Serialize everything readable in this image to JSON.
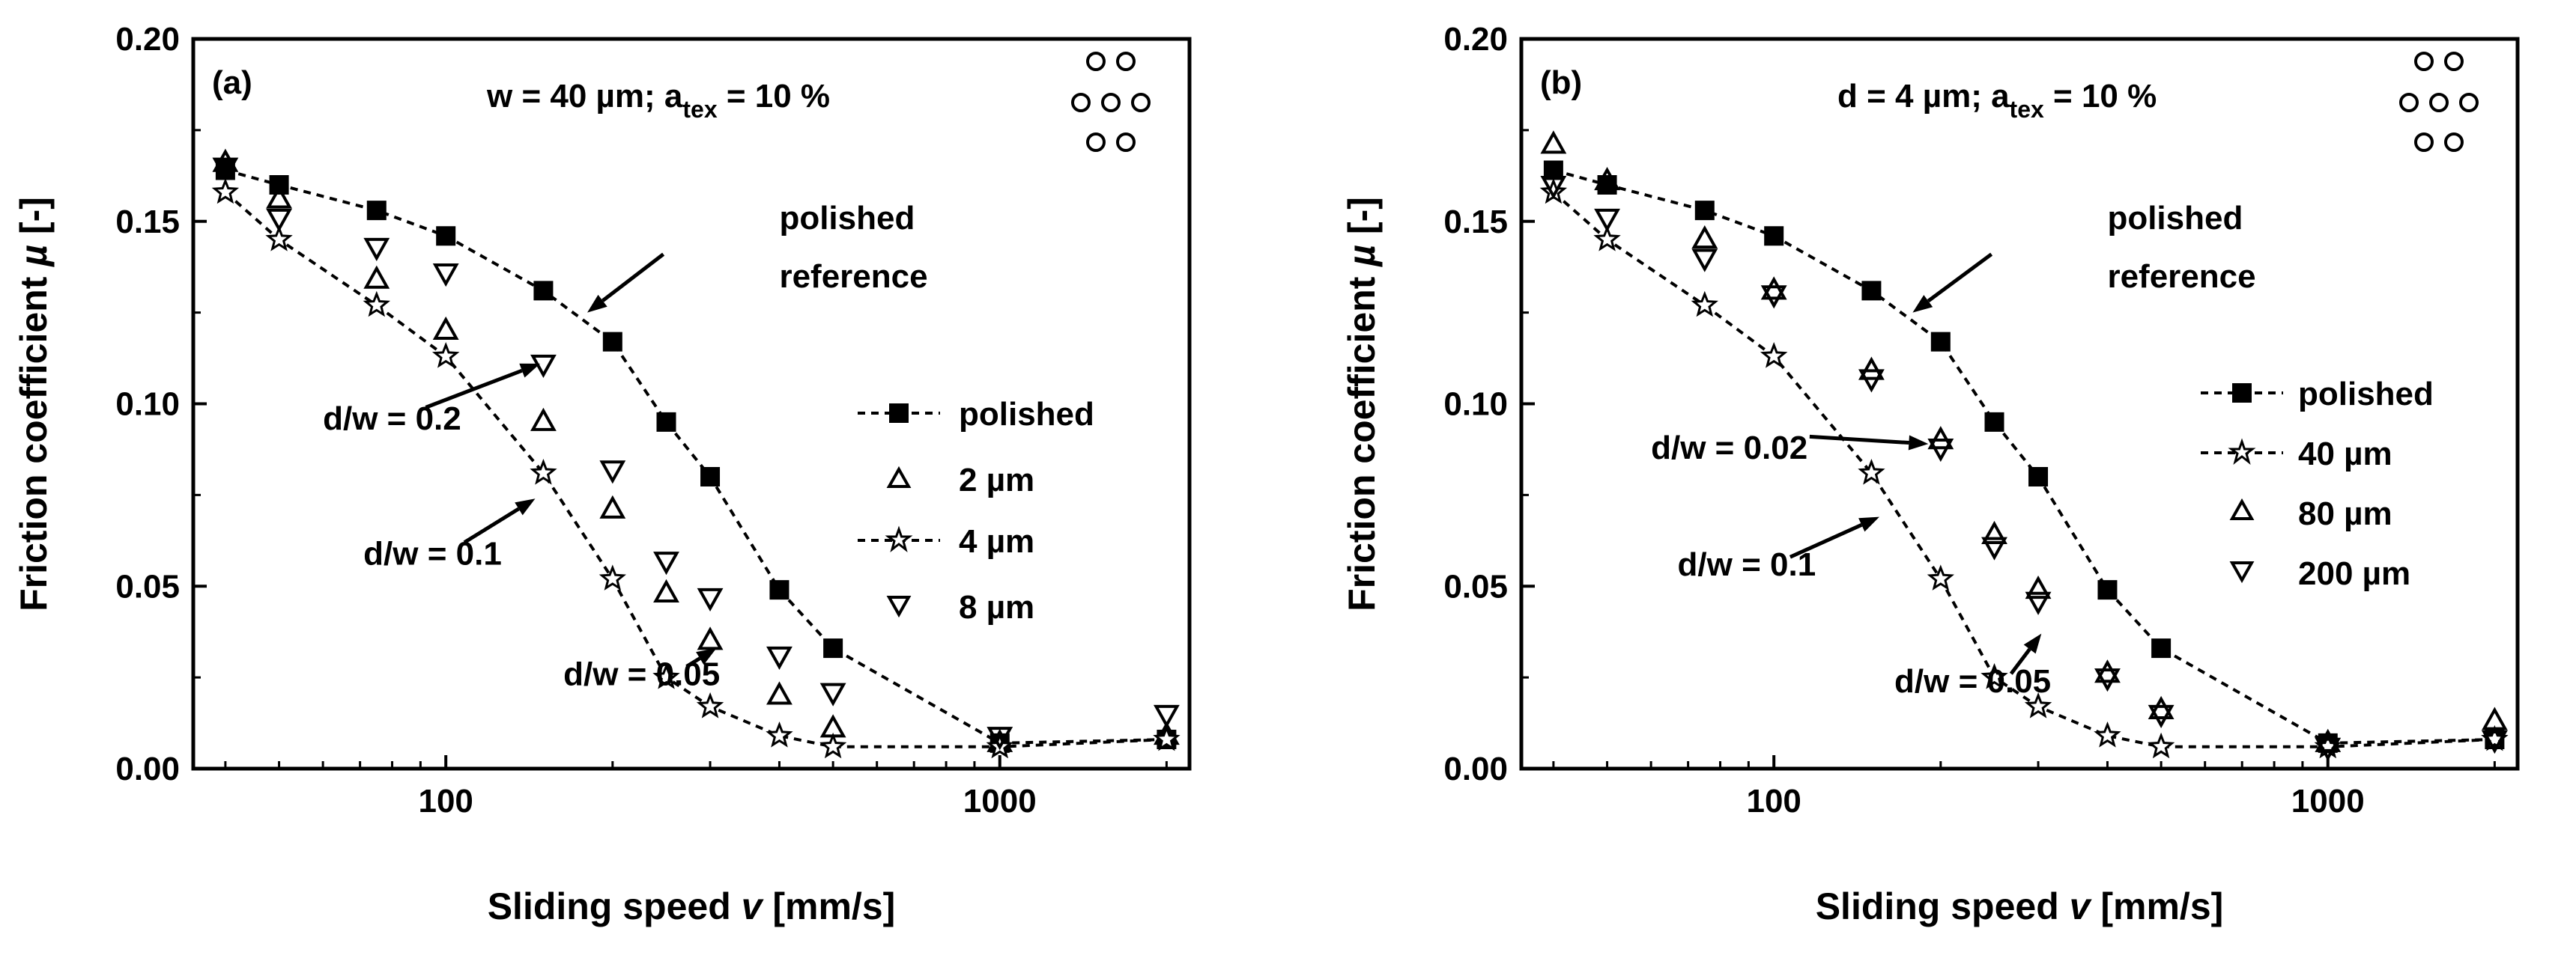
{
  "chart_data": [
    {
      "type": "scatter",
      "panel_label": "(a)",
      "title_main": "w = 40 µm; a",
      "title_sub": "tex",
      "title_end": " = 10 %",
      "xlabel_main": "Sliding speed ",
      "xlabel_var": "v",
      "xlabel_unit": " [mm/s]",
      "ylabel_main": "Friction coefficient ",
      "ylabel_var": "µ",
      "ylabel_unit": " [-]",
      "xscale": "log",
      "xlim": [
        35,
        2200
      ],
      "ylim": [
        0,
        0.2
      ],
      "xticks": [
        100,
        1000
      ],
      "xtick_labels": [
        "100",
        "1000"
      ],
      "yticks": [
        0,
        0.05,
        0.1,
        0.15,
        0.2
      ],
      "ytick_labels": [
        "0.00",
        "0.05",
        "0.10",
        "0.15",
        "0.20"
      ],
      "legend_position": "right",
      "series": [
        {
          "name": "polished",
          "marker": "square",
          "line": true,
          "x": [
            40,
            50,
            75,
            100,
            150,
            200,
            250,
            300,
            400,
            500,
            1000,
            2000
          ],
          "y": [
            0.164,
            0.16,
            0.153,
            0.146,
            0.131,
            0.117,
            0.095,
            0.08,
            0.049,
            0.033,
            0.007,
            0.008
          ]
        },
        {
          "name": "2 µm",
          "marker": "triangle-up",
          "line": false,
          "x": [
            40,
            50,
            75,
            100,
            150,
            200,
            250,
            300,
            400,
            500,
            1000,
            2000
          ],
          "y": [
            0.166,
            0.156,
            0.134,
            0.12,
            0.095,
            0.071,
            0.048,
            0.035,
            0.02,
            0.011,
            0.007,
            0.009
          ]
        },
        {
          "name": "4 µm",
          "marker": "star",
          "line": true,
          "x": [
            40,
            50,
            75,
            100,
            150,
            200,
            250,
            300,
            400,
            500,
            1000,
            2000
          ],
          "y": [
            0.158,
            0.145,
            0.127,
            0.113,
            0.081,
            0.052,
            0.025,
            0.017,
            0.009,
            0.006,
            0.006,
            0.008
          ]
        },
        {
          "name": "8 µm",
          "marker": "triangle-down",
          "line": false,
          "x": [
            40,
            50,
            75,
            100,
            150,
            200,
            250,
            300,
            400,
            500,
            1000,
            2000
          ],
          "y": [
            0.165,
            0.151,
            0.143,
            0.136,
            0.111,
            0.082,
            0.057,
            0.047,
            0.031,
            0.021,
            0.009,
            0.015
          ]
        }
      ],
      "annotations": [
        {
          "text": "polished",
          "x": 400,
          "y": 0.151
        },
        {
          "text": "reference",
          "x": 400,
          "y": 0.135
        },
        {
          "text": "d/w = 0.2",
          "x": 60,
          "y": 0.096
        },
        {
          "text": "d/w = 0.1",
          "x": 71,
          "y": 0.059
        },
        {
          "text": "d/w = 0.05",
          "x": 163,
          "y": 0.026
        }
      ],
      "arrows": [
        {
          "from": [
            247,
            0.141
          ],
          "to": [
            180,
            0.125
          ]
        },
        {
          "from": [
            92,
            0.099
          ],
          "to": [
            148,
            0.111
          ]
        },
        {
          "from": [
            108,
            0.062
          ],
          "to": [
            145,
            0.074
          ]
        },
        {
          "from": [
            272,
            0.028
          ],
          "to": [
            308,
            0.033
          ]
        }
      ]
    },
    {
      "type": "scatter",
      "panel_label": "(b)",
      "title_main": "d = 4 µm; a",
      "title_sub": "tex",
      "title_end": " = 10 %",
      "xlabel_main": "Sliding speed ",
      "xlabel_var": "v",
      "xlabel_unit": " [mm/s]",
      "ylabel_main": "Friction coefficient ",
      "ylabel_var": "µ",
      "ylabel_unit": " [-]",
      "xscale": "log",
      "xlim": [
        35,
        2200
      ],
      "ylim": [
        0,
        0.2
      ],
      "xticks": [
        100,
        1000
      ],
      "xtick_labels": [
        "100",
        "1000"
      ],
      "yticks": [
        0,
        0.05,
        0.1,
        0.15,
        0.2
      ],
      "ytick_labels": [
        "0.00",
        "0.05",
        "0.10",
        "0.15",
        "0.20"
      ],
      "legend_position": "right",
      "series": [
        {
          "name": "polished",
          "marker": "square",
          "line": true,
          "x": [
            40,
            50,
            75,
            100,
            150,
            200,
            250,
            300,
            400,
            500,
            1000,
            2000
          ],
          "y": [
            0.164,
            0.16,
            0.153,
            0.146,
            0.131,
            0.117,
            0.095,
            0.08,
            0.049,
            0.033,
            0.007,
            0.008
          ]
        },
        {
          "name": "40 µm",
          "marker": "star",
          "line": true,
          "x": [
            40,
            50,
            75,
            100,
            150,
            200,
            250,
            300,
            400,
            500,
            1000,
            2000
          ],
          "y": [
            0.158,
            0.145,
            0.127,
            0.113,
            0.081,
            0.052,
            0.025,
            0.017,
            0.009,
            0.006,
            0.006,
            0.008
          ]
        },
        {
          "name": "80 µm",
          "marker": "triangle-up",
          "line": false,
          "x": [
            40,
            50,
            75,
            100,
            150,
            200,
            250,
            300,
            400,
            500,
            1000,
            2000
          ],
          "y": [
            0.171,
            0.161,
            0.145,
            0.131,
            0.109,
            0.09,
            0.064,
            0.049,
            0.026,
            0.016,
            0.007,
            0.013
          ]
        },
        {
          "name": "200 µm",
          "marker": "triangle-down",
          "line": false,
          "x": [
            40,
            50,
            75,
            100,
            150,
            200,
            250,
            300,
            400,
            500,
            1000,
            2000
          ],
          "y": [
            0.16,
            0.151,
            0.14,
            0.13,
            0.107,
            0.088,
            0.061,
            0.046,
            0.025,
            0.015,
            0.006,
            0.008
          ]
        }
      ],
      "annotations": [
        {
          "text": "polished",
          "x": 400,
          "y": 0.151
        },
        {
          "text": "reference",
          "x": 400,
          "y": 0.135
        },
        {
          "text": "d/w = 0.02",
          "x": 60,
          "y": 0.088
        },
        {
          "text": "d/w = 0.1",
          "x": 67,
          "y": 0.056
        },
        {
          "text": "d/w = 0.05",
          "x": 165,
          "y": 0.024
        }
      ],
      "arrows": [
        {
          "from": [
            247,
            0.141
          ],
          "to": [
            178,
            0.125
          ]
        },
        {
          "from": [
            116,
            0.091
          ],
          "to": [
            190,
            0.089
          ]
        },
        {
          "from": [
            107,
            0.058
          ],
          "to": [
            155,
            0.069
          ]
        },
        {
          "from": [
            268,
            0.026
          ],
          "to": [
            304,
            0.037
          ]
        }
      ]
    }
  ]
}
